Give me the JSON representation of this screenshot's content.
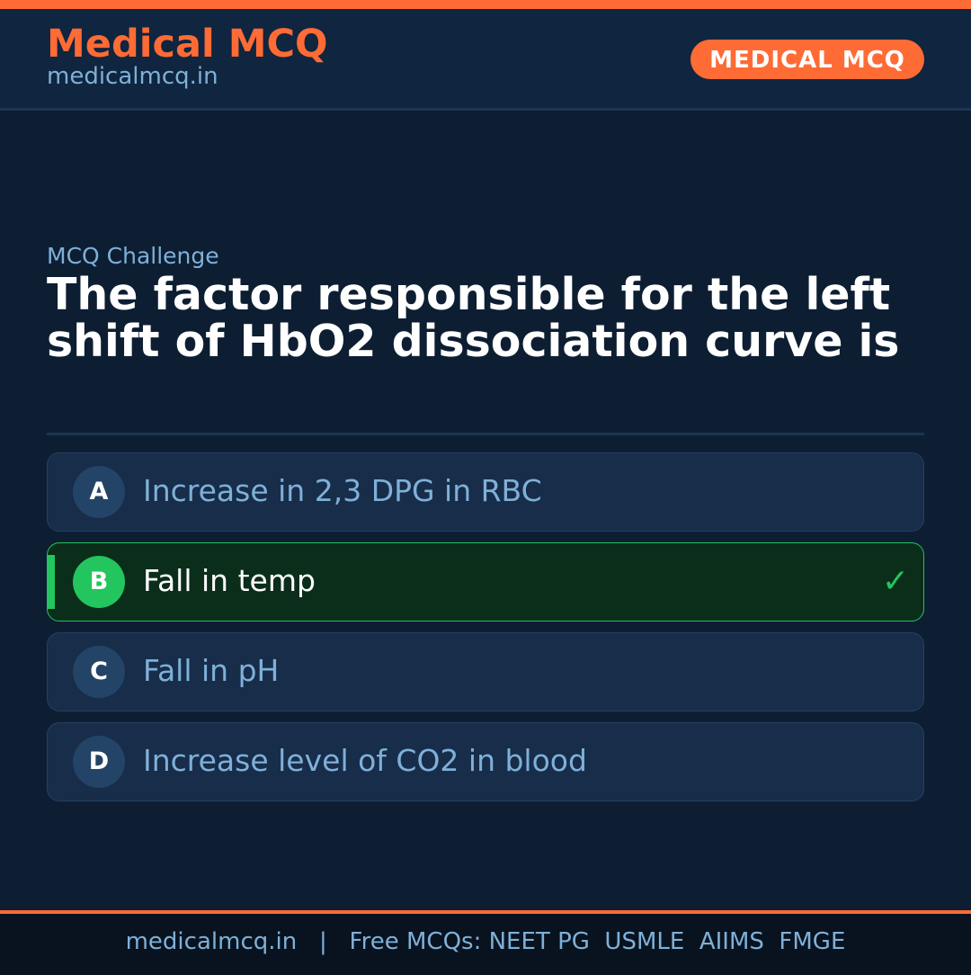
{
  "header": {
    "brand": "Medical MCQ",
    "site": "medicalmcq.in",
    "badge": "MEDICAL MCQ"
  },
  "question": {
    "kicker": "MCQ Challenge",
    "text": "The factor responsible for the left shift of HbO2 dissociation curve is"
  },
  "options": [
    {
      "letter": "A",
      "text": "Increase in 2,3 DPG in RBC",
      "correct": false
    },
    {
      "letter": "B",
      "text": "Fall in temp",
      "correct": true
    },
    {
      "letter": "C",
      "text": "Fall in pH",
      "correct": false
    },
    {
      "letter": "D",
      "text": "Increase level of CO2 in blood",
      "correct": false
    }
  ],
  "correct_icon": "✓",
  "colors": {
    "accent": "#ff6b35",
    "correct": "#22c55e",
    "background": "#0d1e33"
  },
  "footer": {
    "text": "medicalmcq.in   |   Free MCQs: NEET PG  USMLE  AIIMS  FMGE"
  }
}
